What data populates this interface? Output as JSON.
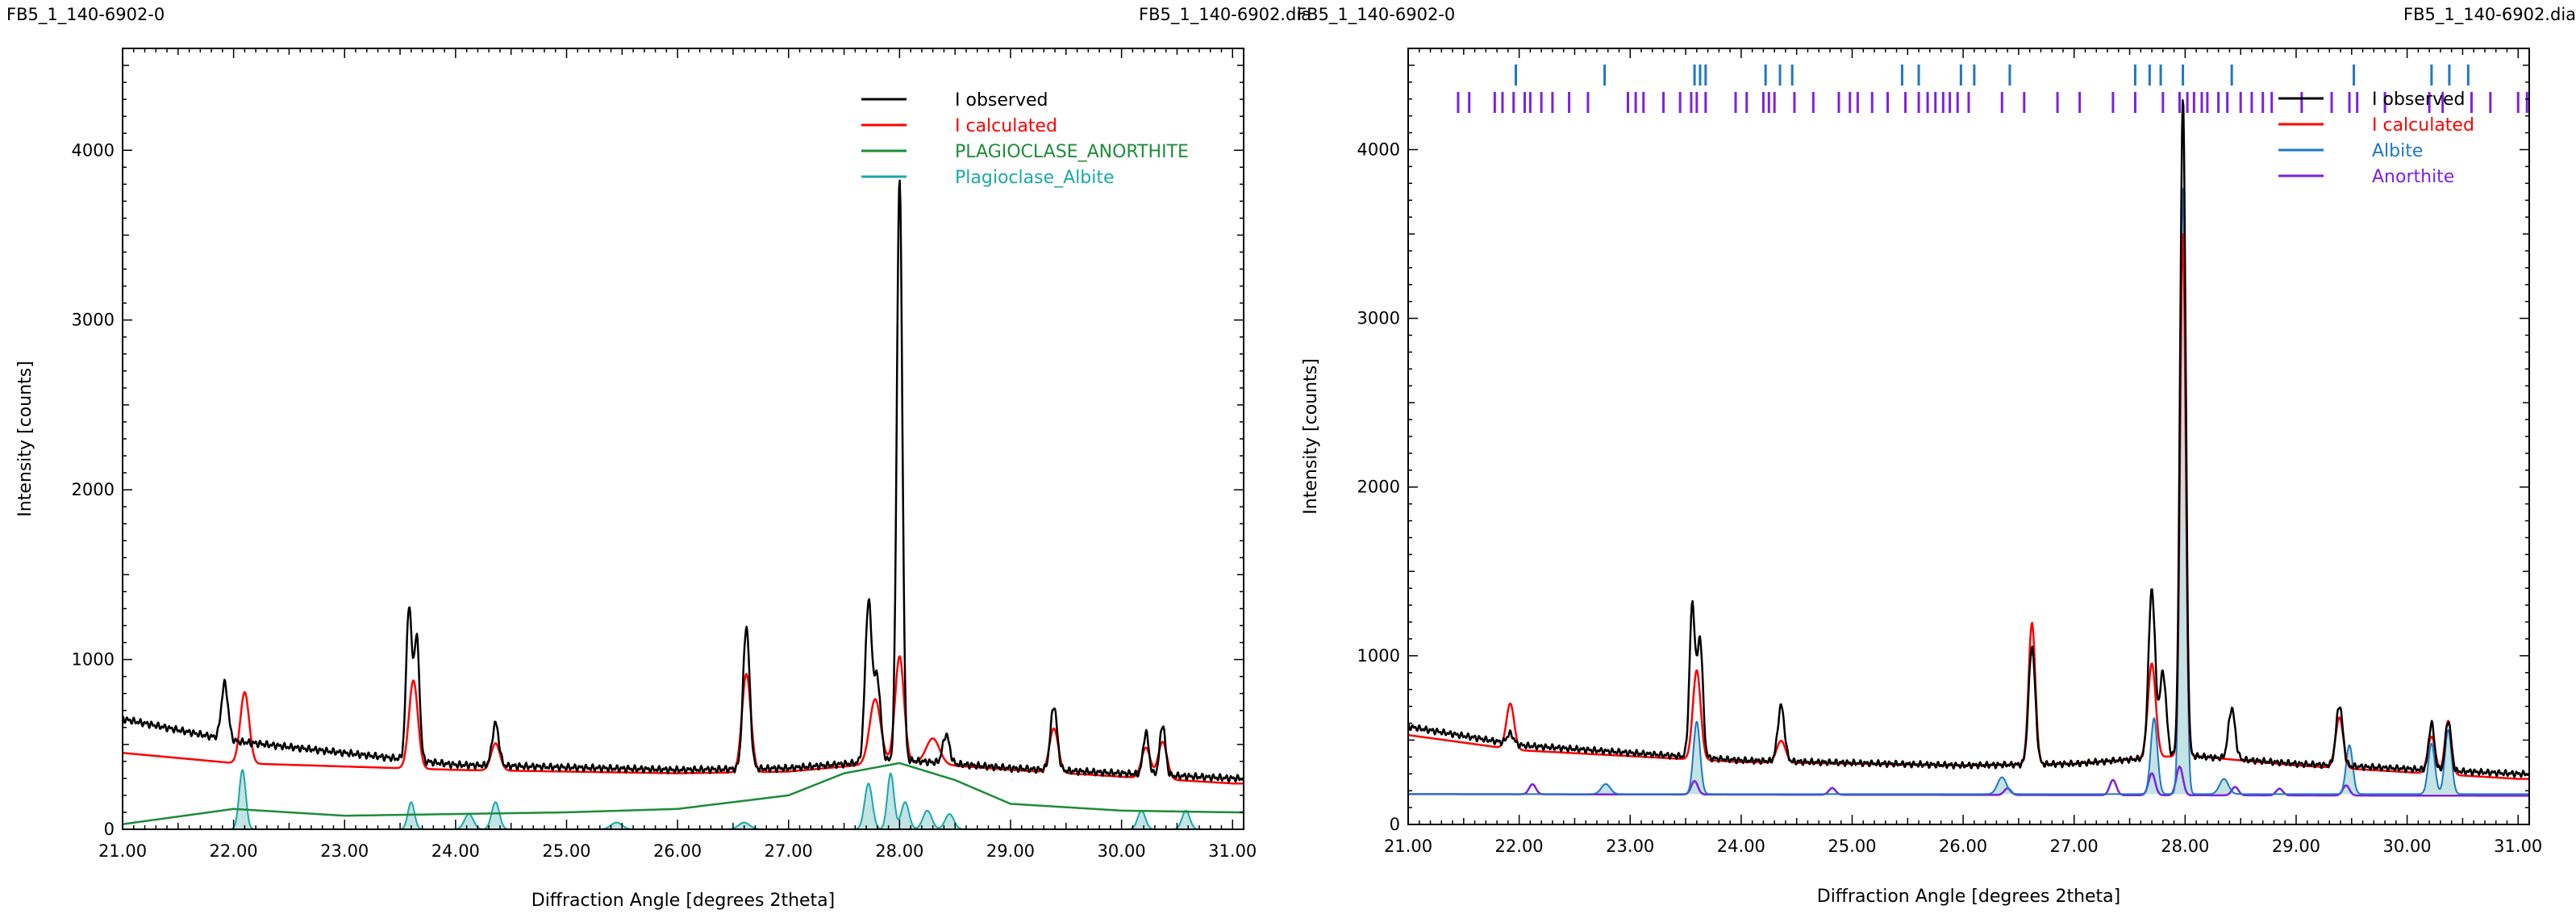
{
  "headers": {
    "left_title": "FB5_1_140-6902-0",
    "left_file": "FB5_1_140-6902.dia",
    "right_title": "FB5_1_140-6902-0",
    "right_file": "FB5_1_140-6902.dia"
  },
  "colors": {
    "observed": "#000000",
    "calculated": "#ff0000",
    "anorthite_phase": "#1e8c3a",
    "albite_phase": "#1aa8a8",
    "albite_right": "#1f77c4",
    "anorthite_right": "#7b22e0",
    "fill_light": "#b8dedf"
  },
  "chart_data": [
    {
      "type": "line",
      "xlabel": "Diffraction Angle [degrees 2theta]",
      "ylabel": "Intensity [counts]",
      "xlim": [
        21.0,
        31.1
      ],
      "ylim": [
        0,
        4600
      ],
      "xticks": [
        "21.00",
        "22.00",
        "23.00",
        "24.00",
        "25.00",
        "26.00",
        "27.00",
        "28.00",
        "29.00",
        "30.00",
        "31.00"
      ],
      "xtick_values": [
        21,
        22,
        23,
        24,
        25,
        26,
        27,
        28,
        29,
        30,
        31
      ],
      "yticks": [
        "0",
        "1000",
        "2000",
        "3000",
        "4000"
      ],
      "ytick_values": [
        0,
        1000,
        2000,
        3000,
        4000
      ],
      "legend": [
        "I observed",
        "I calculated",
        "PLAGIOCLASE_ANORTHITE",
        "Plagioclase_Albite"
      ],
      "series": [
        {
          "name": "I observed",
          "base": [
            [
              21.0,
              650
            ],
            [
              22.0,
              520
            ],
            [
              24.0,
              380
            ],
            [
              26.0,
              350
            ],
            [
              27.0,
              360
            ],
            [
              28.0,
              410
            ],
            [
              29.0,
              360
            ],
            [
              31.0,
              300
            ]
          ],
          "peaks": [
            [
              21.92,
              330,
              0.03
            ],
            [
              23.58,
              900,
              0.025
            ],
            [
              23.65,
              720,
              0.025
            ],
            [
              24.36,
              250,
              0.03
            ],
            [
              26.62,
              840,
              0.03
            ],
            [
              27.72,
              940,
              0.03
            ],
            [
              27.8,
              480,
              0.03
            ],
            [
              28.0,
              3420,
              0.025
            ],
            [
              28.42,
              170,
              0.03
            ],
            [
              29.39,
              380,
              0.03
            ],
            [
              30.22,
              250,
              0.025
            ],
            [
              30.37,
              300,
              0.025
            ]
          ]
        },
        {
          "name": "I calculated",
          "base": [
            [
              21.0,
              450
            ],
            [
              22.0,
              390
            ],
            [
              24.0,
              350
            ],
            [
              26.0,
              330
            ],
            [
              27.0,
              340
            ],
            [
              28.0,
              400
            ],
            [
              29.0,
              350
            ],
            [
              31.0,
              270
            ]
          ],
          "peaks": [
            [
              22.1,
              420,
              0.04
            ],
            [
              23.62,
              520,
              0.04
            ],
            [
              24.36,
              160,
              0.04
            ],
            [
              26.62,
              580,
              0.04
            ],
            [
              27.78,
              380,
              0.05
            ],
            [
              28.0,
              620,
              0.04
            ],
            [
              28.3,
              150,
              0.06
            ],
            [
              29.39,
              260,
              0.04
            ],
            [
              30.22,
              180,
              0.04
            ],
            [
              30.37,
              220,
              0.04
            ]
          ]
        },
        {
          "name": "PLAGIOCLASE_ANORTHITE",
          "base": [
            [
              21.0,
              30
            ],
            [
              22.0,
              120
            ],
            [
              23.0,
              80
            ],
            [
              24.0,
              90
            ],
            [
              25.0,
              100
            ],
            [
              26.0,
              120
            ],
            [
              27.0,
              200
            ],
            [
              27.5,
              330
            ],
            [
              28.0,
              390
            ],
            [
              28.5,
              290
            ],
            [
              29.0,
              150
            ],
            [
              30.0,
              110
            ],
            [
              31.0,
              100
            ]
          ],
          "peaks": []
        },
        {
          "name": "Plagioclase_Albite",
          "base": [
            [
              21.0,
              0
            ],
            [
              31.1,
              0
            ]
          ],
          "peaks": [
            [
              22.08,
              350,
              0.03
            ],
            [
              23.6,
              160,
              0.03
            ],
            [
              24.12,
              90,
              0.04
            ],
            [
              24.36,
              160,
              0.035
            ],
            [
              25.45,
              40,
              0.05
            ],
            [
              26.6,
              40,
              0.05
            ],
            [
              27.72,
              270,
              0.035
            ],
            [
              27.92,
              330,
              0.03
            ],
            [
              28.05,
              160,
              0.035
            ],
            [
              28.25,
              110,
              0.04
            ],
            [
              28.45,
              90,
              0.04
            ],
            [
              30.18,
              110,
              0.035
            ],
            [
              30.58,
              110,
              0.035
            ]
          ]
        }
      ]
    },
    {
      "type": "line",
      "xlabel": "Diffraction Angle [degrees 2theta]",
      "ylabel": "Intensity [counts]",
      "xlim": [
        21.0,
        31.1
      ],
      "ylim": [
        0,
        4600
      ],
      "xticks": [
        "21.00",
        "22.00",
        "23.00",
        "24.00",
        "25.00",
        "26.00",
        "27.00",
        "28.00",
        "29.00",
        "30.00",
        "31.00"
      ],
      "xtick_values": [
        21,
        22,
        23,
        24,
        25,
        26,
        27,
        28,
        29,
        30,
        31
      ],
      "yticks": [
        "0",
        "1000",
        "2000",
        "3000",
        "4000"
      ],
      "ytick_values": [
        0,
        1000,
        2000,
        3000,
        4000
      ],
      "legend": [
        "I observed",
        "I calculated",
        "Albite",
        "Anorthite"
      ],
      "series": [
        {
          "name": "I observed",
          "base": [
            [
              21.0,
              580
            ],
            [
              22.0,
              470
            ],
            [
              24.0,
              380
            ],
            [
              26.0,
              350
            ],
            [
              27.0,
              360
            ],
            [
              28.0,
              410
            ],
            [
              29.0,
              360
            ],
            [
              31.0,
              300
            ]
          ],
          "peaks": [
            [
              21.92,
              60,
              0.03
            ],
            [
              23.56,
              900,
              0.025
            ],
            [
              23.63,
              700,
              0.025
            ],
            [
              24.36,
              330,
              0.03
            ],
            [
              26.62,
              700,
              0.03
            ],
            [
              27.7,
              1000,
              0.03
            ],
            [
              27.8,
              500,
              0.03
            ],
            [
              27.98,
              3900,
              0.025
            ],
            [
              28.42,
              300,
              0.03
            ],
            [
              29.39,
              360,
              0.03
            ],
            [
              30.22,
              280,
              0.025
            ],
            [
              30.37,
              300,
              0.025
            ]
          ]
        },
        {
          "name": "I calculated",
          "base": [
            [
              21.0,
              530
            ],
            [
              22.0,
              440
            ],
            [
              24.0,
              370
            ],
            [
              26.0,
              350
            ],
            [
              27.0,
              360
            ],
            [
              28.0,
              410
            ],
            [
              29.0,
              350
            ],
            [
              31.0,
              270
            ]
          ],
          "peaks": [
            [
              21.92,
              270,
              0.035
            ],
            [
              23.6,
              530,
              0.035
            ],
            [
              24.36,
              130,
              0.04
            ],
            [
              26.62,
              840,
              0.03
            ],
            [
              27.7,
              560,
              0.035
            ],
            [
              27.98,
              3100,
              0.025
            ],
            [
              29.39,
              300,
              0.035
            ],
            [
              30.22,
              220,
              0.035
            ],
            [
              30.37,
              320,
              0.03
            ]
          ]
        },
        {
          "name": "Albite",
          "base": [
            [
              21.0,
              180
            ],
            [
              31.1,
              180
            ]
          ],
          "peaks": [
            [
              22.78,
              60,
              0.04
            ],
            [
              23.6,
              430,
              0.03
            ],
            [
              26.35,
              100,
              0.04
            ],
            [
              27.72,
              450,
              0.03
            ],
            [
              27.98,
              3600,
              0.025
            ],
            [
              28.35,
              90,
              0.04
            ],
            [
              29.48,
              290,
              0.03
            ],
            [
              30.22,
              300,
              0.03
            ],
            [
              30.37,
              380,
              0.03
            ]
          ]
        },
        {
          "name": "Anorthite",
          "base": [
            [
              21.0,
              180
            ],
            [
              31.1,
              170
            ]
          ],
          "peaks": [
            [
              22.12,
              60,
              0.03
            ],
            [
              23.58,
              80,
              0.03
            ],
            [
              24.82,
              40,
              0.03
            ],
            [
              26.4,
              40,
              0.03
            ],
            [
              27.35,
              90,
              0.03
            ],
            [
              27.7,
              130,
              0.03
            ],
            [
              27.95,
              170,
              0.03
            ],
            [
              28.45,
              50,
              0.03
            ],
            [
              28.85,
              40,
              0.03
            ],
            [
              29.45,
              60,
              0.03
            ]
          ]
        }
      ],
      "reflections": {
        "albite": [
          21.97,
          22.77,
          23.58,
          23.63,
          23.68,
          24.22,
          24.35,
          24.46,
          25.45,
          25.6,
          25.98,
          26.1,
          26.42,
          27.55,
          27.68,
          27.78,
          27.98,
          28.42,
          29.52,
          30.22,
          30.38,
          30.55
        ],
        "anorthite": [
          21.45,
          21.55,
          21.78,
          21.85,
          21.95,
          22.05,
          22.1,
          22.2,
          22.3,
          22.45,
          22.62,
          22.98,
          23.05,
          23.12,
          23.3,
          23.45,
          23.55,
          23.6,
          23.68,
          23.95,
          24.05,
          24.2,
          24.25,
          24.3,
          24.48,
          24.65,
          24.88,
          24.98,
          25.05,
          25.18,
          25.32,
          25.48,
          25.6,
          25.68,
          25.75,
          25.82,
          25.88,
          25.95,
          26.05,
          26.35,
          26.55,
          26.85,
          27.05,
          27.35,
          27.55,
          27.8,
          27.95,
          28.02,
          28.08,
          28.15,
          28.2,
          28.3,
          28.38,
          28.5,
          28.6,
          28.7,
          28.78,
          29.05,
          29.32,
          29.48,
          29.55,
          29.8,
          30.2,
          30.32,
          30.58,
          30.75,
          31.0,
          31.08
        ]
      }
    }
  ]
}
